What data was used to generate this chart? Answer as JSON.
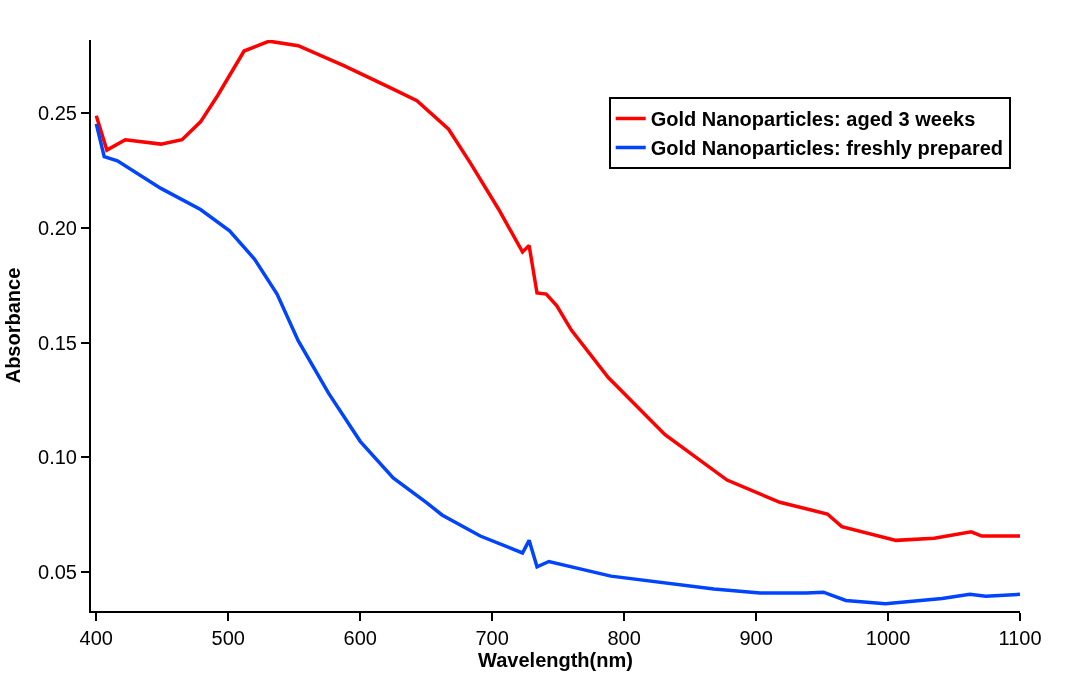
{
  "chart_data": {
    "type": "line",
    "xlabel": "Wavelength(nm)",
    "ylabel": "Absorbance",
    "xlim": [
      396,
      1100
    ],
    "ylim": [
      0.033,
      0.282
    ],
    "xticks": [
      400,
      500,
      600,
      700,
      800,
      900,
      1000,
      1100
    ],
    "yticks": [
      {
        "value": 0.05,
        "label": "0.05"
      },
      {
        "value": 0.1,
        "label": "0.10"
      },
      {
        "value": 0.15,
        "label": "0.15"
      },
      {
        "value": 0.2,
        "label": "0.20"
      },
      {
        "value": 0.25,
        "label": "0.25"
      }
    ],
    "legend": "top right",
    "marker": "none",
    "line_style": "solid",
    "series": [
      {
        "name": "Gold Nanoparticles: aged 3 weeks",
        "color": "#ff0000",
        "x": [
          400,
          408,
          422,
          449,
          465,
          479,
          492,
          512,
          531,
          553,
          588,
          623,
          643,
          667,
          684,
          705,
          723,
          728,
          734,
          741,
          749,
          760,
          788,
          831,
          878,
          918,
          954,
          965,
          1006,
          1035,
          1063,
          1071,
          1100
        ],
        "values": [
          0.249,
          0.234,
          0.2385,
          0.2366,
          0.2385,
          0.2463,
          0.2578,
          0.2772,
          0.2815,
          0.2795,
          0.2707,
          0.2611,
          0.2555,
          0.2431,
          0.2279,
          0.2081,
          0.1896,
          0.1924,
          0.1717,
          0.1712,
          0.1661,
          0.1555,
          0.1348,
          0.1099,
          0.0901,
          0.0804,
          0.0753,
          0.0698,
          0.0638,
          0.0647,
          0.0675,
          0.0657,
          0.0657
        ]
      },
      {
        "name": "Gold Nanoparticles: freshly prepared",
        "color": "#0044ff",
        "x": [
          400,
          406,
          416,
          449,
          479,
          501,
          520,
          537,
          553,
          576,
          600,
          625,
          650,
          662,
          691,
          723,
          728,
          734,
          743,
          790,
          868,
          903,
          938,
          951,
          968,
          998,
          1041,
          1062,
          1074,
          1100
        ],
        "values": [
          0.2454,
          0.2311,
          0.2293,
          0.2173,
          0.2081,
          0.1988,
          0.1864,
          0.1712,
          0.1509,
          0.128,
          0.107,
          0.091,
          0.0804,
          0.0749,
          0.0657,
          0.0583,
          0.0638,
          0.0523,
          0.0546,
          0.0482,
          0.0426,
          0.0408,
          0.0408,
          0.0412,
          0.0376,
          0.0362,
          0.0385,
          0.0403,
          0.0394,
          0.0403
        ]
      }
    ]
  }
}
